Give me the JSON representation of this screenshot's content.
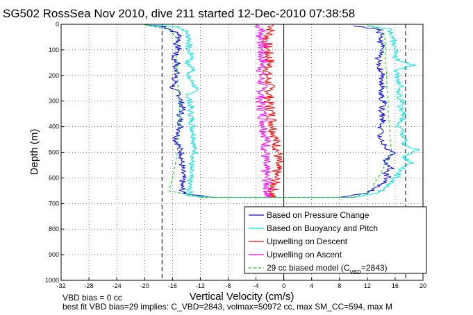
{
  "chart_data": {
    "type": "line",
    "title": "SG502 RossSea Nov 2010, dive 211 started 12-Dec-2010 07:38:58",
    "xlabel": "Vertical Velocity (cm/s)",
    "ylabel": "Depth (m)",
    "xlim": [
      -32,
      20
    ],
    "ylim": [
      1000,
      0
    ],
    "y_reversed": true,
    "grid": true,
    "legend_position": "bottom-right",
    "xticks": [
      "-32",
      "-28",
      "-24",
      "-20",
      "-16",
      "-12",
      "-8",
      "-4",
      "0",
      "4",
      "8",
      "12",
      "16",
      "20"
    ],
    "yticks": [
      "0",
      "100",
      "200",
      "300",
      "400",
      "500",
      "600",
      "700",
      "800",
      "900",
      "1000"
    ],
    "ref_lines_x": [
      -17.5,
      0,
      17.5
    ],
    "series": [
      {
        "name": "Based on Pressure Change",
        "color": "#0000ff",
        "descent": {
          "depth": [
            2,
            10,
            25,
            40,
            60,
            80,
            100,
            130,
            150,
            170,
            190,
            210,
            230,
            250,
            270,
            300,
            330,
            360,
            390,
            420,
            450,
            480,
            510,
            540,
            570,
            600,
            630,
            660,
            676
          ],
          "velocity": [
            -20,
            -17,
            -16,
            -15,
            -15,
            -15.5,
            -15,
            -16,
            -15.2,
            -15.8,
            -15,
            -16,
            -15.5,
            -16.2,
            -15,
            -14.8,
            -14.5,
            -15,
            -14.8,
            -15,
            -15.5,
            -15,
            -14.6,
            -14.7,
            -14.6,
            -14.5,
            -14.7,
            -14.5,
            -10
          ]
        },
        "ascent": {
          "depth": [
            676,
            660,
            640,
            620,
            600,
            580,
            560,
            540,
            520,
            500,
            480,
            460,
            430,
            400,
            370,
            340,
            310,
            280,
            250,
            220,
            190,
            160,
            130,
            100,
            80,
            60,
            40,
            20,
            5
          ],
          "velocity": [
            8,
            12,
            13,
            14.5,
            15,
            14.5,
            15.5,
            14.5,
            15,
            16,
            14.5,
            14,
            13.8,
            14,
            14.3,
            13.9,
            14.5,
            14,
            14.3,
            14.2,
            14,
            13.8,
            13.5,
            14,
            14,
            13.7,
            14,
            13.5,
            10
          ]
        }
      },
      {
        "name": "Based on Buoyancy and Pitch",
        "color": "#00e5e5",
        "descent": {
          "depth": [
            2,
            10,
            30,
            60,
            100,
            130,
            150,
            180,
            200,
            230,
            250,
            280,
            300,
            340,
            380,
            420,
            450,
            480,
            500,
            530,
            560,
            600,
            640,
            670,
            676
          ],
          "velocity": [
            -20,
            -15,
            -14,
            -13.5,
            -13.8,
            -13,
            -14,
            -12.8,
            -14,
            -13,
            -12.6,
            -13.8,
            -13.5,
            -13.4,
            -13.2,
            -13,
            -12.8,
            -13,
            -12.6,
            -13.2,
            -13.4,
            -13.5,
            -13.6,
            -13.6,
            -10
          ]
        },
        "ascent": {
          "depth": [
            676,
            660,
            640,
            620,
            600,
            580,
            560,
            540,
            520,
            500,
            490,
            470,
            450,
            420,
            390,
            360,
            330,
            300,
            270,
            240,
            210,
            180,
            160,
            140,
            120,
            100,
            80,
            60,
            40,
            20,
            5
          ],
          "velocity": [
            10,
            13.5,
            14.5,
            15.5,
            16,
            16.5,
            17,
            18.5,
            17,
            18.5,
            19.5,
            17,
            17.5,
            16.8,
            16.5,
            17.3,
            16.8,
            17,
            16.5,
            17,
            16.4,
            16,
            19,
            16.2,
            15.8,
            16,
            15.5,
            15.8,
            15.2,
            15.5,
            12
          ]
        }
      },
      {
        "name": "Upwelling on Descent",
        "color": "#ff0000",
        "depth": [
          0,
          30,
          60,
          100,
          150,
          200,
          250,
          300,
          350,
          400,
          450,
          500,
          550,
          600,
          650,
          676
        ],
        "velocity": [
          -1.5,
          -2,
          -2.5,
          -2.3,
          -2,
          -2.4,
          -2,
          -2.2,
          -1.8,
          -1.5,
          -1.2,
          -0.8,
          -1,
          -1.2,
          -1.5,
          -1.8
        ]
      },
      {
        "name": "Upwelling on Ascent",
        "color": "#ff00ff",
        "depth": [
          0,
          20,
          40,
          60,
          100,
          150,
          200,
          250,
          300,
          350,
          400,
          450,
          500,
          550,
          600,
          650,
          676
        ],
        "velocity": [
          -4,
          -3,
          -3.5,
          -3,
          -3.2,
          -3,
          -3.3,
          -3.1,
          -3.4,
          -3,
          -2.8,
          -2.5,
          -2.6,
          -2.8,
          -2.5,
          -2.2,
          -2.5
        ]
      },
      {
        "name": "29 cc biased model (C",
        "name_sub": "VBD",
        "name_suffix": "=2843)",
        "color": "#00cc00",
        "dashed": true,
        "descent": {
          "depth": [
            2,
            20,
            50,
            100,
            150,
            200,
            250,
            300,
            350,
            400,
            450,
            500,
            550,
            600,
            650,
            676
          ],
          "velocity": [
            -20,
            -16.5,
            -15.5,
            -15.5,
            -15.4,
            -15.3,
            -15.2,
            -15,
            -15,
            -15,
            -15.2,
            -15.3,
            -15.6,
            -16,
            -16.5,
            -12
          ]
        },
        "ascent": {
          "depth": [
            676,
            650,
            620,
            600,
            580,
            550,
            500,
            450,
            400,
            350,
            300,
            250,
            200,
            150,
            100,
            50,
            20,
            5
          ],
          "velocity": [
            10,
            12.5,
            13,
            13.5,
            14,
            14.5,
            15.5,
            15.3,
            15.2,
            15,
            15,
            14.8,
            14.8,
            14.6,
            14.6,
            14.5,
            14.2,
            12
          ]
        }
      }
    ]
  },
  "footer": {
    "line1": "VBD bias = 0 cc",
    "line2": "best fit VBD bias=29 implies: C_VBD=2843, volmax=50972 cc, max SM_CC=594, max M"
  }
}
